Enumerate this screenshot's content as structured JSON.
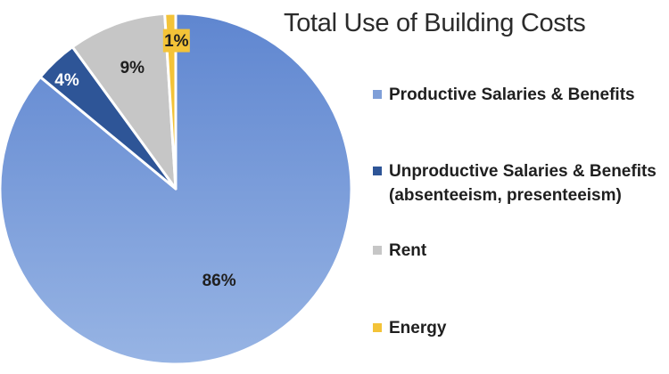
{
  "chart_data": {
    "type": "pie",
    "title": "Total Use of Building Costs",
    "slices": [
      {
        "label": "Productive Salaries & Benefits",
        "label_lines": [
          "Productive Salaries & Benefits"
        ],
        "value": 86,
        "data_label": "86%",
        "color": "#7f9fd8"
      },
      {
        "label": "Unproductive Salaries & Benefits (absenteeism, presenteeism)",
        "label_lines": [
          "Unproductive Salaries & Benefits",
          "(absenteeism, presenteeism)"
        ],
        "value": 4,
        "data_label": "4%",
        "color": "#2e5597"
      },
      {
        "label": "Rent",
        "label_lines": [
          "Rent"
        ],
        "value": 9,
        "data_label": "9%",
        "color": "#c6c6c6"
      },
      {
        "label": "Energy",
        "label_lines": [
          "Energy"
        ],
        "value": 1,
        "data_label": "1%",
        "color": "#f3c338"
      }
    ],
    "legend_position": "right"
  }
}
